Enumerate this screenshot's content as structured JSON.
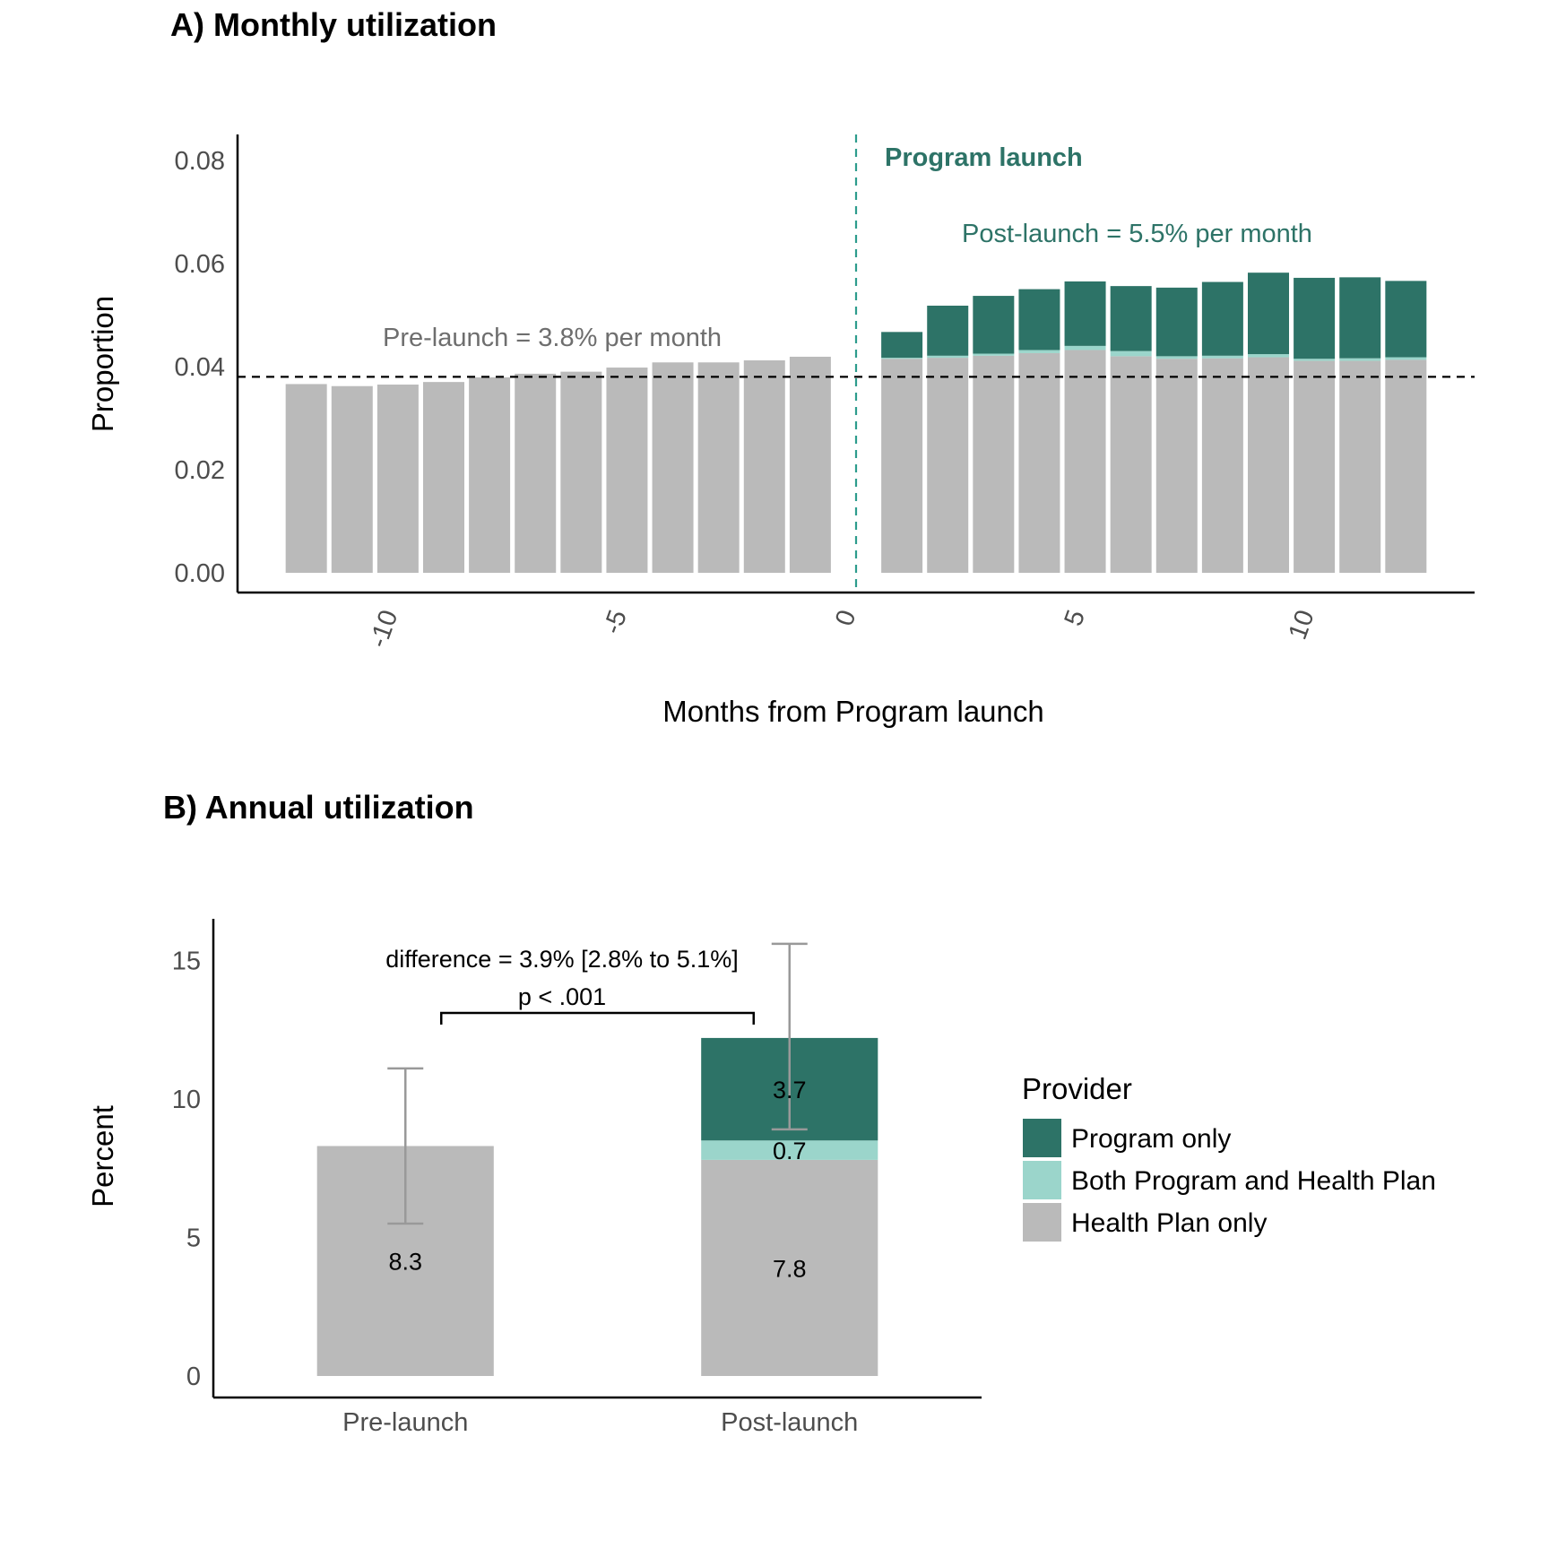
{
  "chart_data": [
    {
      "type": "bar",
      "stacked": true,
      "title": "A) Monthly utilization",
      "xlabel": "Months from Program launch",
      "ylabel": "Proportion",
      "xlim": [
        -13.5,
        13.5
      ],
      "ylim": [
        0,
        0.085
      ],
      "x_ticks": [
        -10,
        -5,
        0,
        5,
        10
      ],
      "y_ticks": [
        "0.00",
        "0.02",
        "0.04",
        "0.06",
        "0.08"
      ],
      "x": [
        -12,
        -11,
        -10,
        -9,
        -8,
        -7,
        -6,
        -5,
        -4,
        -3,
        -2,
        -1,
        1,
        2,
        3,
        4,
        5,
        6,
        7,
        8,
        9,
        10,
        11,
        12
      ],
      "series": [
        {
          "name": "Health Plan only",
          "color": "#bababa",
          "values": [
            0.0366,
            0.0362,
            0.0365,
            0.037,
            0.0379,
            0.0386,
            0.039,
            0.0398,
            0.0408,
            0.0408,
            0.0412,
            0.0419,
            0.0415,
            0.0417,
            0.0421,
            0.0426,
            0.0432,
            0.042,
            0.0415,
            0.0416,
            0.0418,
            0.0411,
            0.0411,
            0.0413
          ]
        },
        {
          "name": "Both Program and Health Plan",
          "color": "#9bd5cb",
          "values": [
            0,
            0,
            0,
            0,
            0,
            0,
            0,
            0,
            0,
            0,
            0,
            0,
            0.0002,
            0.0004,
            0.0004,
            0.0006,
            0.0008,
            0.001,
            0.0005,
            0.0005,
            0.0006,
            0.0004,
            0.0005,
            0.0005
          ]
        },
        {
          "name": "Program only",
          "color": "#2d7367",
          "values": [
            0,
            0,
            0,
            0,
            0,
            0,
            0,
            0,
            0,
            0,
            0,
            0,
            0.005,
            0.0097,
            0.0112,
            0.0118,
            0.0125,
            0.0126,
            0.0133,
            0.0143,
            0.0158,
            0.0157,
            0.0157,
            0.0148
          ]
        }
      ],
      "hline": {
        "y": 0.038,
        "style": "dashed",
        "color": "#000000"
      },
      "vline": {
        "x": 0,
        "style": "dashed",
        "color": "#2d9c8c"
      },
      "annotations": {
        "program_launch": "Program launch",
        "post_launch": "Post-launch = 5.5% per month",
        "pre_launch": "Pre-launch = 3.8% per month"
      }
    },
    {
      "type": "bar",
      "stacked": true,
      "title": "B) Annual utilization",
      "xlabel": "",
      "ylabel": "Percent",
      "ylim": [
        0,
        16.5
      ],
      "y_ticks": [
        "0",
        "5",
        "10",
        "15"
      ],
      "categories": [
        "Pre-launch",
        "Post-launch"
      ],
      "series": [
        {
          "name": "Health Plan only",
          "color": "#bababa",
          "values": [
            8.3,
            7.8
          ],
          "labels": [
            "8.3",
            "7.8"
          ]
        },
        {
          "name": "Both Program and Health Plan",
          "color": "#9bd5cb",
          "values": [
            0,
            0.7
          ],
          "labels": [
            "",
            "0.7"
          ]
        },
        {
          "name": "Program only",
          "color": "#2d7367",
          "values": [
            0,
            3.7
          ],
          "labels": [
            "",
            "3.7"
          ]
        }
      ],
      "error_bars": [
        {
          "category": "Pre-launch",
          "low": 5.5,
          "high": 11.1
        },
        {
          "category": "Post-launch",
          "low": 8.9,
          "high": 15.6
        }
      ],
      "annotations": {
        "difference": "difference = 3.9% [2.8% to 5.1%]",
        "p_value": "p < .001"
      },
      "legend": {
        "title": "Provider",
        "placement": "right",
        "items": [
          {
            "label": "Program only",
            "color": "#2d7367"
          },
          {
            "label": "Both Program and Health Plan",
            "color": "#9bd5cb"
          },
          {
            "label": "Health Plan only",
            "color": "#bababa"
          }
        ]
      }
    }
  ]
}
